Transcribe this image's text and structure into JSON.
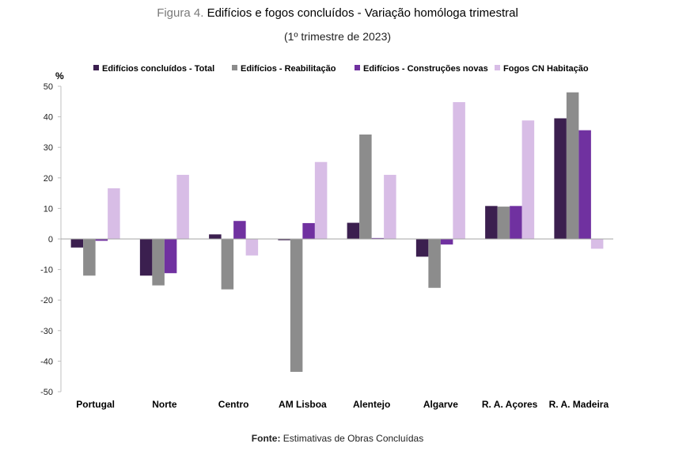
{
  "header": {
    "figure_label": "Figura 4.",
    "title": "Edifícios e fogos concluídos - Variação homóloga trimestral",
    "subtitle": "(1º trimestre de 2023)"
  },
  "source": {
    "label": "Fonte:",
    "text": "Estimativas de Obras Concluídas"
  },
  "chart_data": {
    "type": "bar",
    "ylabel": "%",
    "ylim": [
      -50,
      50
    ],
    "yticks": [
      50,
      40,
      30,
      20,
      10,
      0,
      -10,
      -20,
      -30,
      -40,
      -50
    ],
    "grid": false,
    "legend_position": "top",
    "categories": [
      "Portugal",
      "Norte",
      "Centro",
      "AM Lisboa",
      "Alentejo",
      "Algarve",
      "R. A. Açores",
      "R. A. Madeira"
    ],
    "series": [
      {
        "name": "Edifícios concluídos - Total",
        "color": "#3b1f4f",
        "values": [
          -2.8,
          -12.0,
          1.5,
          -0.4,
          5.3,
          -5.8,
          10.8,
          39.5
        ]
      },
      {
        "name": "Edifícios - Reabilitação",
        "color": "#8c8c8c",
        "values": [
          -12.0,
          -15.2,
          -16.5,
          -43.5,
          34.2,
          -16.0,
          10.6,
          48.0
        ]
      },
      {
        "name": "Edifícios - Construções novas",
        "color": "#7031a0",
        "values": [
          -0.6,
          -11.2,
          5.9,
          5.2,
          0.3,
          -1.8,
          10.8,
          35.6
        ]
      },
      {
        "name": "Fogos CN Habitação",
        "color": "#d8bde6",
        "values": [
          16.6,
          21.0,
          -5.4,
          25.2,
          21.0,
          44.8,
          38.8,
          -3.2
        ]
      }
    ]
  }
}
